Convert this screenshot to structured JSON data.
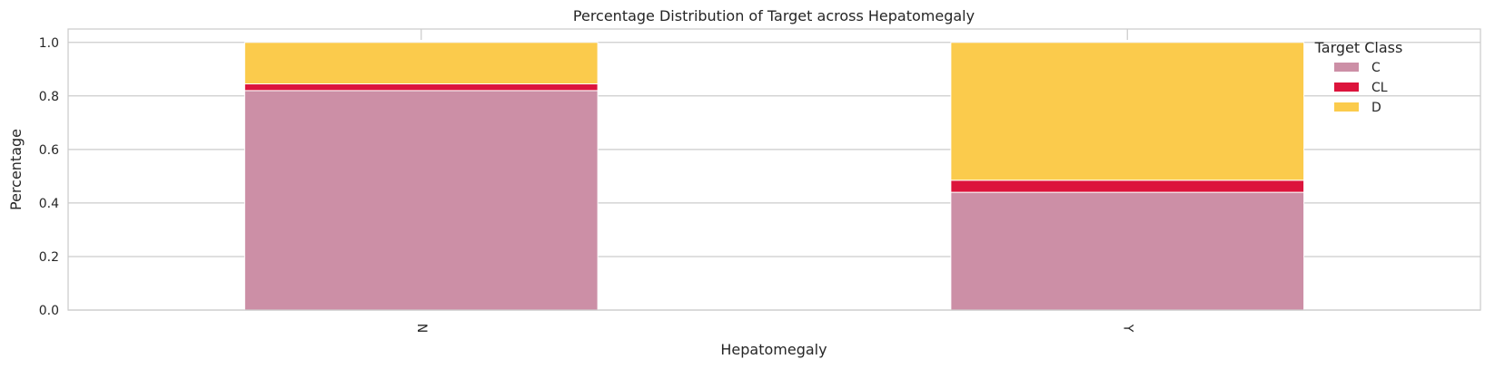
{
  "chart_data": {
    "type": "bar",
    "stacked": true,
    "title": "Percentage Distribution of Target across Hepatomegaly",
    "xlabel": "Hepatomegaly",
    "ylabel": "Percentage",
    "ylim": [
      0,
      1.05
    ],
    "yticks": [
      "0.0",
      "0.2",
      "0.4",
      "0.6",
      "0.8",
      "1.0"
    ],
    "categories": [
      "N",
      "Y"
    ],
    "series": [
      {
        "name": "C",
        "color": "#cc8fa6",
        "values": [
          0.82,
          0.44
        ]
      },
      {
        "name": "CL",
        "color": "#dc143c",
        "values": [
          0.025,
          0.045
        ]
      },
      {
        "name": "D",
        "color": "#fbcb4c",
        "values": [
          0.155,
          0.515
        ]
      }
    ],
    "legend": {
      "title": "Target Class",
      "position": "top-right"
    },
    "grid": "y",
    "x_tick_rotation": 90
  }
}
